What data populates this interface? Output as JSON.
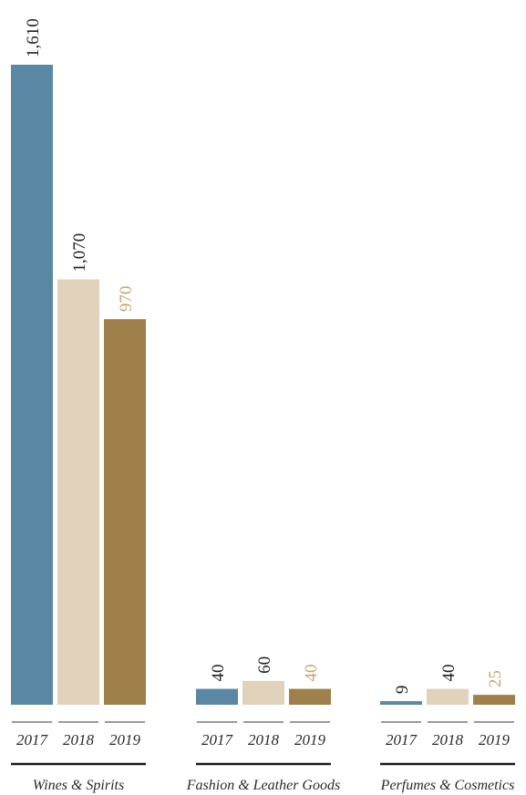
{
  "chart_data": {
    "type": "bar",
    "title": "",
    "xlabel": "",
    "ylabel": "",
    "categories": [
      "Wines & Spirits",
      "Fashion & Leather Goods",
      "Perfumes & Cosmetics"
    ],
    "years": [
      "2017",
      "2018",
      "2019"
    ],
    "series": [
      {
        "values": [
          1610,
          40,
          9
        ],
        "color": "#5a87a4",
        "label_color": "#222222"
      },
      {
        "values": [
          1070,
          60,
          40
        ],
        "color": "#e0d2bb",
        "label_color": "#222222"
      },
      {
        "values": [
          970,
          40,
          25
        ],
        "color": "#a0804a",
        "label_color": "#c4a676"
      }
    ],
    "value_labels": [
      [
        "1,610",
        "1,070",
        "970"
      ],
      [
        "40",
        "60",
        "40"
      ],
      [
        "9",
        "40",
        "25"
      ]
    ],
    "ylim": [
      0,
      1610
    ],
    "grid": false,
    "legend": "none"
  }
}
